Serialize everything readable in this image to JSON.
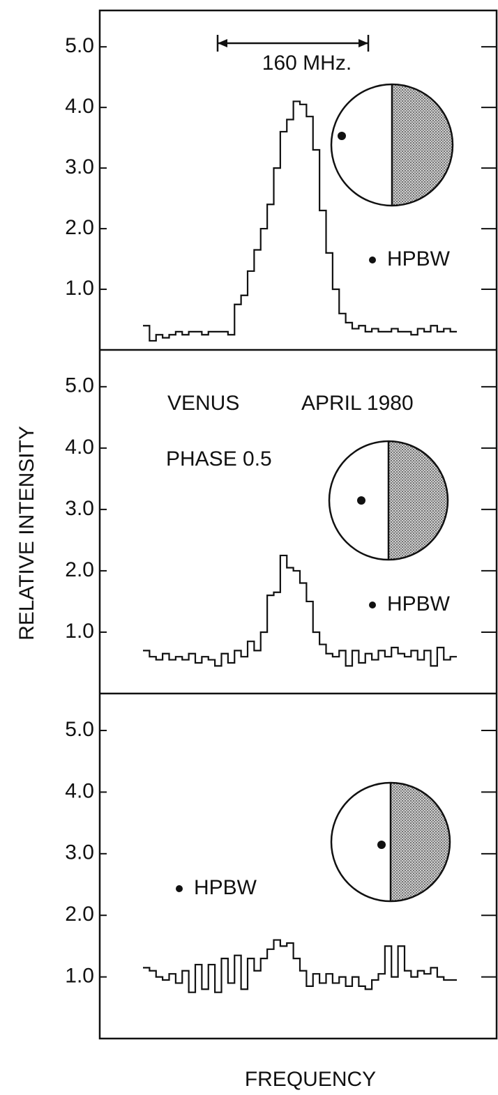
{
  "chart_data": [
    {
      "type": "line",
      "step": true,
      "color": "#111",
      "annotations": [
        "160 MHz.",
        "HPBW"
      ],
      "ylim": [
        0,
        5.6
      ],
      "yticks": [
        {
          "value": 1,
          "label": "1.0"
        },
        {
          "value": 2,
          "label": "2.0"
        },
        {
          "value": 3,
          "label": "3.0"
        },
        {
          "value": 4,
          "label": "4.0"
        },
        {
          "value": 5,
          "label": "5.0"
        }
      ],
      "values": [
        0.4,
        0.15,
        0.25,
        0.2,
        0.25,
        0.3,
        0.25,
        0.3,
        0.3,
        0.25,
        0.3,
        0.3,
        0.3,
        0.25,
        0.75,
        0.9,
        1.3,
        1.65,
        2.0,
        2.4,
        3.0,
        3.6,
        3.8,
        4.1,
        4.05,
        3.85,
        3.3,
        2.3,
        1.6,
        1.0,
        0.6,
        0.45,
        0.35,
        0.4,
        0.3,
        0.35,
        0.3,
        0.3,
        0.35,
        0.3,
        0.3,
        0.25,
        0.35,
        0.3,
        0.4,
        0.3,
        0.35,
        0.3
      ]
    },
    {
      "type": "line",
      "step": true,
      "color": "#111",
      "y_label": "RELATIVE INTENSITY",
      "annotations": [
        "VENUS",
        "APRIL 1980",
        "PHASE 0.5",
        "HPBW"
      ],
      "ylim": [
        0,
        5.6
      ],
      "yticks": [
        {
          "value": 1,
          "label": "1.0"
        },
        {
          "value": 2,
          "label": "2.0"
        },
        {
          "value": 3,
          "label": "3.0"
        },
        {
          "value": 4,
          "label": "4.0"
        },
        {
          "value": 5,
          "label": "5.0"
        }
      ],
      "values": [
        0.7,
        0.6,
        0.55,
        0.65,
        0.55,
        0.6,
        0.55,
        0.65,
        0.5,
        0.6,
        0.55,
        0.45,
        0.65,
        0.5,
        0.7,
        0.6,
        0.85,
        0.7,
        1.0,
        1.6,
        1.65,
        2.25,
        2.05,
        2.0,
        1.8,
        1.5,
        1.0,
        0.8,
        0.65,
        0.6,
        0.7,
        0.45,
        0.7,
        0.5,
        0.65,
        0.55,
        0.7,
        0.6,
        0.75,
        0.65,
        0.6,
        0.7,
        0.55,
        0.7,
        0.45,
        0.75,
        0.55,
        0.6
      ]
    },
    {
      "type": "line",
      "step": true,
      "color": "#111",
      "x_label": "FREQUENCY",
      "annotations": [
        "HPBW"
      ],
      "ylim": [
        0,
        5.6
      ],
      "yticks": [
        {
          "value": 1,
          "label": "1.0"
        },
        {
          "value": 2,
          "label": "2.0"
        },
        {
          "value": 3,
          "label": "3.0"
        },
        {
          "value": 4,
          "label": "4.0"
        },
        {
          "value": 5,
          "label": "5.0"
        }
      ],
      "values": [
        1.15,
        1.1,
        1.0,
        0.95,
        1.05,
        0.9,
        1.1,
        0.75,
        1.2,
        0.8,
        1.2,
        0.75,
        1.3,
        0.9,
        1.35,
        0.8,
        1.3,
        1.1,
        1.3,
        1.45,
        1.6,
        1.5,
        1.55,
        1.3,
        1.1,
        0.85,
        1.05,
        0.9,
        1.05,
        0.9,
        1.0,
        0.85,
        1.0,
        0.85,
        0.8,
        0.95,
        1.05,
        1.5,
        1.0,
        1.5,
        1.1,
        1.0,
        1.1,
        1.05,
        1.15,
        1.0,
        0.95,
        0.95
      ]
    }
  ]
}
